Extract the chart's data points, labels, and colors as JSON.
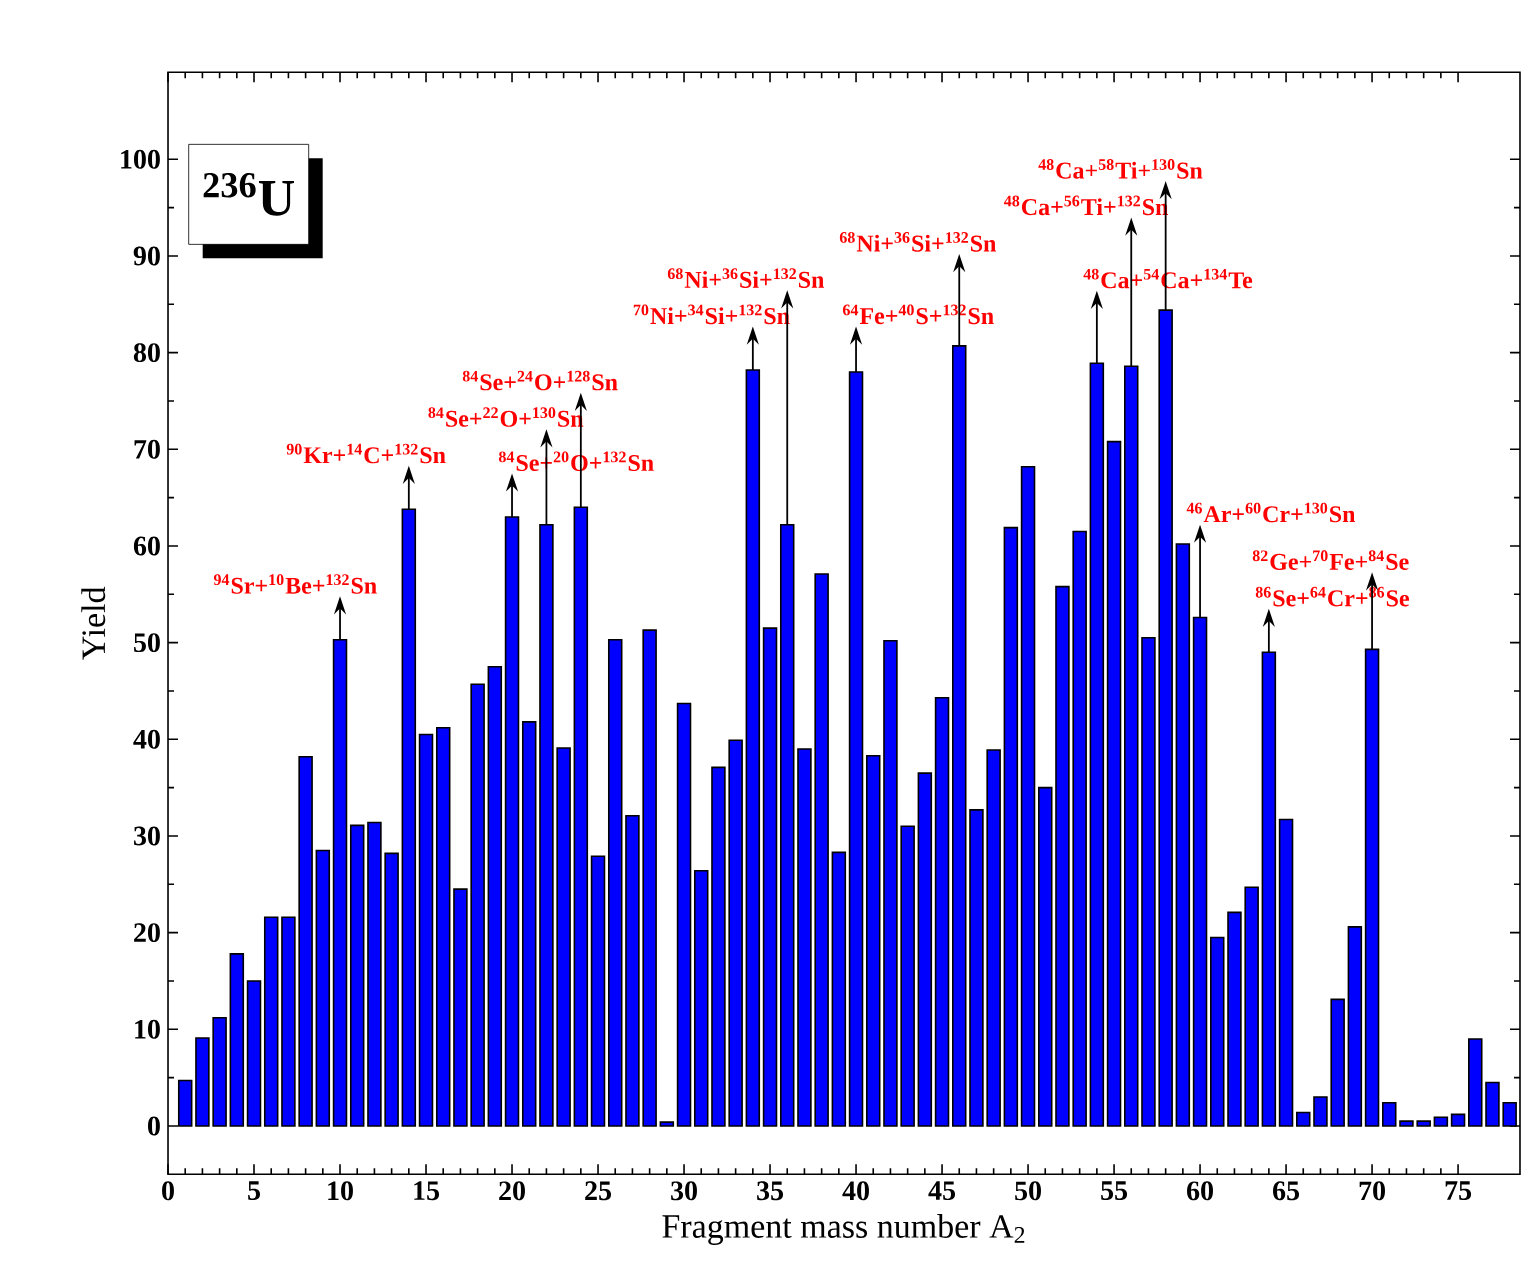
{
  "chart_data": {
    "type": "bar",
    "xlabel": "Fragment mass number A$_{2}$",
    "ylabel": "Yield",
    "color": "#0000ff",
    "x": [
      1,
      2,
      3,
      4,
      5,
      6,
      7,
      8,
      9,
      10,
      11,
      12,
      13,
      14,
      15,
      16,
      17,
      18,
      19,
      20,
      21,
      22,
      23,
      24,
      25,
      26,
      27,
      28,
      29,
      30,
      31,
      32,
      33,
      34,
      35,
      36,
      37,
      38,
      39,
      40,
      41,
      42,
      43,
      44,
      45,
      46,
      47,
      48,
      49,
      50,
      51,
      52,
      53,
      54,
      55,
      56,
      57,
      58,
      59,
      60,
      61,
      62,
      63,
      64,
      65,
      66,
      67,
      68,
      69,
      70,
      71,
      72,
      73,
      74,
      75,
      76,
      77,
      78
    ],
    "values": [
      4.7,
      9.1,
      11.2,
      17.8,
      15.0,
      21.6,
      21.6,
      38.2,
      28.5,
      50.3,
      31.1,
      31.4,
      28.2,
      63.8,
      40.5,
      41.2,
      24.5,
      45.7,
      47.5,
      63.0,
      41.8,
      62.2,
      39.1,
      64.0,
      27.9,
      50.3,
      32.1,
      51.3,
      0.4,
      43.7,
      26.4,
      37.1,
      39.9,
      78.2,
      51.5,
      62.2,
      39.0,
      57.1,
      28.3,
      78.0,
      38.3,
      50.2,
      31.0,
      36.5,
      44.3,
      80.7,
      32.7,
      38.9,
      61.9,
      68.2,
      35.0,
      55.8,
      61.5,
      78.9,
      70.8,
      78.6,
      50.5,
      84.4,
      60.2,
      52.6,
      19.5,
      22.1,
      24.7,
      49.0,
      31.7,
      1.4,
      3.0,
      13.1,
      20.6,
      49.3,
      2.4,
      0.5,
      0.5,
      0.9,
      1.2,
      9.0,
      4.5,
      2.4
    ],
    "xlim": [
      0,
      78.6
    ],
    "ylim": [
      -5,
      109
    ],
    "xticks": [
      0,
      5,
      10,
      15,
      20,
      25,
      30,
      35,
      40,
      45,
      50,
      55,
      60,
      65,
      70,
      75
    ],
    "yticks": [
      0,
      10,
      20,
      30,
      40,
      50,
      60,
      70,
      80,
      90,
      100
    ],
    "grid": false,
    "annotations": [
      "$^{236}$U",
      {
        "text": "$^{94}$Sr+$^{10}$Be+$^{132}$Sn",
        "x": 10,
        "y": 50.3
      },
      {
        "text": "$^{90}$Kr+$^{14}$C+$^{132}$Sn",
        "x": 14,
        "y": 63.8
      },
      {
        "text": "$^{84}$Se+$^{20}$O+$^{132}$Sn",
        "x": 20,
        "y": 63.0
      },
      {
        "text": "$^{84}$Se+$^{22}$O+$^{130}$Sn",
        "x": 22,
        "y": 62.2
      },
      {
        "text": "$^{84}$Se+$^{24}$O+$^{128}$Sn",
        "x": 24,
        "y": 64.0
      },
      {
        "text": "$^{70}$Ni+$^{34}$Si+$^{132}$Sn",
        "x": 34,
        "y": 78.2
      },
      {
        "text": "$^{68}$Ni+$^{36}$Si+$^{132}$Sn",
        "x": 36,
        "y": 62.2
      },
      {
        "text": "$^{64}$Fe+$^{40}$S+$^{132}$Sn",
        "x": 40,
        "y": 78.0
      },
      {
        "text": "$^{68}$Ni+$^{36}$Si+$^{132}$Sn",
        "x": 46,
        "y": 80.7
      },
      {
        "text": "$^{48}$Ca+$^{54}$Ca+$^{134}$Te",
        "x": 54,
        "y": 78.9
      },
      {
        "text": "$^{48}$Ca+$^{56}$Ti+$^{132}$Sn",
        "x": 56,
        "y": 78.6
      },
      {
        "text": "$^{48}$Ca+$^{58}$Ti+$^{130}$Sn",
        "x": 58,
        "y": 84.4
      },
      {
        "text": "$^{46}$Ar+$^{60}$Cr+$^{130}$Sn",
        "x": 60,
        "y": 52.6
      },
      {
        "text": "$^{86}$Se+$^{64}$Cr+$^{86}$Se",
        "x": 64,
        "y": 49.0
      },
      {
        "text": "$^{82}$Ge+$^{70}$Fe+$^{84}$Se",
        "x": 70,
        "y": 49.3
      }
    ]
  }
}
